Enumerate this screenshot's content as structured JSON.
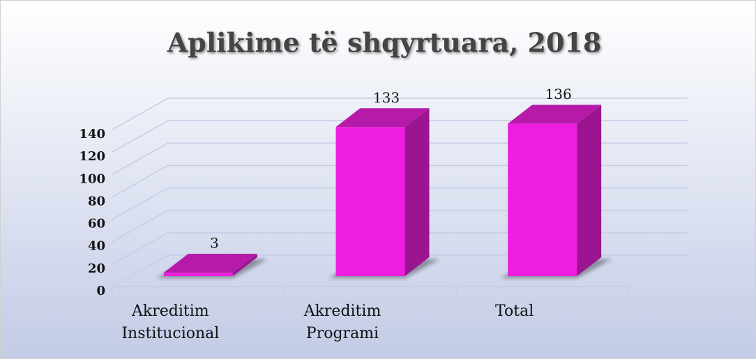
{
  "chart_data": {
    "type": "bar3d",
    "title": "Aplikime të shqyrtuara, 2018",
    "categories": [
      "Akreditim Institucional",
      "Akreditim Programi",
      "Total"
    ],
    "values": [
      3,
      133,
      136
    ],
    "color": "#ee1ee0",
    "ylim": [
      0,
      140
    ],
    "yticks": [
      0,
      20,
      40,
      60,
      80,
      100,
      120,
      140
    ],
    "grid": true
  }
}
